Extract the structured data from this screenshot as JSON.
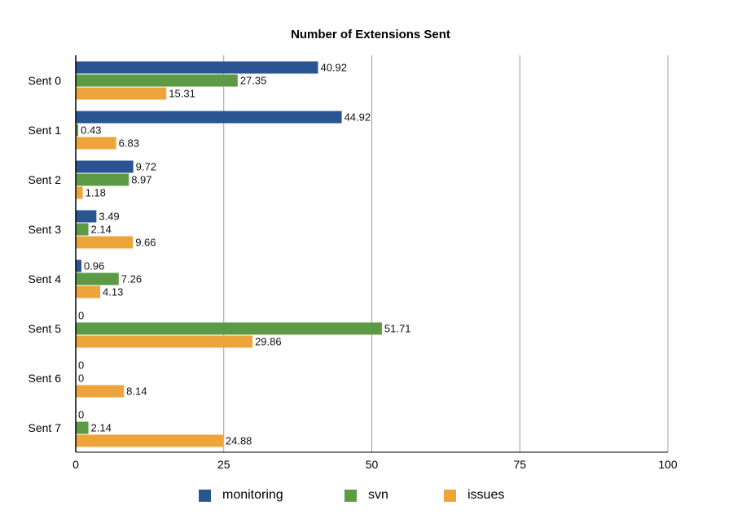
{
  "chart_data": {
    "type": "bar",
    "orientation": "horizontal",
    "title": "Number of Extensions Sent",
    "categories": [
      "Sent 0",
      "Sent 1",
      "Sent 2",
      "Sent 3",
      "Sent 4",
      "Sent 5",
      "Sent 6",
      "Sent 7"
    ],
    "series": [
      {
        "name": "monitoring",
        "color": "#2a5592",
        "values": [
          40.92,
          44.92,
          9.72,
          3.49,
          0.96,
          0,
          0,
          0
        ]
      },
      {
        "name": "svn",
        "color": "#5c9a46",
        "values": [
          27.35,
          0.43,
          8.97,
          2.14,
          7.26,
          51.71,
          0,
          2.14
        ]
      },
      {
        "name": "issues",
        "color": "#eda43b",
        "values": [
          15.31,
          6.83,
          1.18,
          9.66,
          4.13,
          29.86,
          8.14,
          24.88
        ]
      }
    ],
    "value_labels": [
      [
        "40.92",
        "27.35",
        "15.31"
      ],
      [
        "44.92",
        "0.43",
        "6.83"
      ],
      [
        "9.72",
        "8.97",
        "1.18"
      ],
      [
        "3.49",
        "2.14",
        "9.66"
      ],
      [
        "0.96",
        "7.26",
        "4.13"
      ],
      [
        "0",
        "51.71",
        "29.86"
      ],
      [
        "0",
        "0",
        "8.14"
      ],
      [
        "0",
        "2.14",
        "24.88"
      ]
    ],
    "xlim": [
      0,
      100
    ],
    "x_ticks": [
      0,
      25,
      50,
      75,
      100
    ],
    "grid": "vertical",
    "legend_position": "bottom"
  }
}
